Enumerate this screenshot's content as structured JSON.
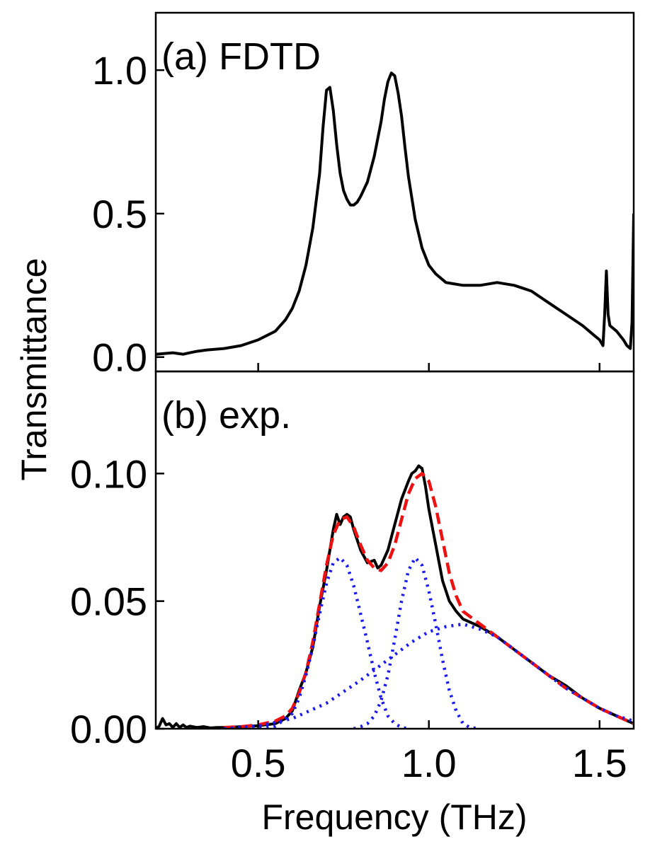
{
  "figure": {
    "xlabel": "Frequency (THz)",
    "ylabel": "Transmittance"
  },
  "chart_data": [
    {
      "type": "line",
      "panel_label": "(a) FDTD",
      "xlim": [
        0.2,
        1.6
      ],
      "ylim": [
        -0.05,
        1.2
      ],
      "yticks": [
        0.0,
        0.5,
        1.0
      ],
      "ytick_labels": [
        "0.0",
        "0.5",
        "1.0"
      ],
      "xticks": [
        0.5,
        1.0,
        1.5
      ],
      "xtick_labels_visible": false,
      "grid": false,
      "series": [
        {
          "color": "#000000",
          "style": "solid",
          "x": [
            0.2,
            0.25,
            0.28,
            0.3,
            0.32,
            0.35,
            0.4,
            0.45,
            0.5,
            0.55,
            0.58,
            0.6,
            0.62,
            0.64,
            0.66,
            0.68,
            0.69,
            0.7,
            0.71,
            0.72,
            0.73,
            0.74,
            0.75,
            0.76,
            0.77,
            0.78,
            0.79,
            0.8,
            0.82,
            0.84,
            0.86,
            0.87,
            0.88,
            0.89,
            0.9,
            0.91,
            0.92,
            0.93,
            0.94,
            0.96,
            0.98,
            1.0,
            1.02,
            1.05,
            1.1,
            1.15,
            1.2,
            1.25,
            1.3,
            1.35,
            1.4,
            1.45,
            1.48,
            1.5,
            1.51,
            1.515,
            1.52,
            1.525,
            1.53,
            1.55,
            1.57,
            1.58,
            1.59,
            1.595,
            1.6
          ],
          "y": [
            0.01,
            0.015,
            0.01,
            0.015,
            0.02,
            0.025,
            0.03,
            0.04,
            0.06,
            0.09,
            0.13,
            0.17,
            0.23,
            0.32,
            0.45,
            0.64,
            0.8,
            0.93,
            0.94,
            0.86,
            0.74,
            0.64,
            0.58,
            0.55,
            0.53,
            0.53,
            0.54,
            0.56,
            0.61,
            0.7,
            0.82,
            0.9,
            0.96,
            0.99,
            0.98,
            0.92,
            0.84,
            0.73,
            0.63,
            0.48,
            0.38,
            0.32,
            0.29,
            0.26,
            0.25,
            0.25,
            0.26,
            0.25,
            0.23,
            0.19,
            0.15,
            0.11,
            0.08,
            0.06,
            0.04,
            0.15,
            0.3,
            0.15,
            0.11,
            0.09,
            0.06,
            0.04,
            0.03,
            0.12,
            0.5
          ]
        }
      ]
    },
    {
      "type": "line",
      "panel_label": "(b) exp.",
      "xlim": [
        0.2,
        1.6
      ],
      "ylim": [
        0.0,
        0.14
      ],
      "yticks": [
        0.0,
        0.05,
        0.1
      ],
      "ytick_labels": [
        "0.00",
        "0.05",
        "0.10"
      ],
      "xticks": [
        0.5,
        1.0,
        1.5
      ],
      "xtick_labels": [
        "0.5",
        "1.0",
        "1.5"
      ],
      "grid": false,
      "series": [
        {
          "color": "#000000",
          "style": "solid",
          "x": [
            0.2,
            0.21,
            0.22,
            0.23,
            0.24,
            0.25,
            0.26,
            0.27,
            0.28,
            0.29,
            0.3,
            0.32,
            0.34,
            0.36,
            0.38,
            0.4,
            0.45,
            0.5,
            0.55,
            0.58,
            0.6,
            0.62,
            0.64,
            0.66,
            0.68,
            0.7,
            0.72,
            0.73,
            0.74,
            0.75,
            0.76,
            0.77,
            0.78,
            0.8,
            0.82,
            0.84,
            0.85,
            0.86,
            0.88,
            0.9,
            0.92,
            0.94,
            0.95,
            0.96,
            0.97,
            0.98,
            0.99,
            1.0,
            1.02,
            1.04,
            1.06,
            1.08,
            1.1,
            1.15,
            1.2,
            1.25,
            1.3,
            1.35,
            1.4,
            1.45,
            1.5,
            1.55,
            1.6
          ],
          "y": [
            0.0,
            0.001,
            0.004,
            0.0015,
            0.002,
            0.0005,
            0.002,
            0.0005,
            0.0015,
            0.0005,
            0.001,
            0.0005,
            0.0008,
            0.0003,
            0.0005,
            0.0005,
            0.0008,
            0.0012,
            0.002,
            0.004,
            0.007,
            0.015,
            0.022,
            0.032,
            0.048,
            0.062,
            0.078,
            0.084,
            0.08,
            0.083,
            0.084,
            0.083,
            0.078,
            0.07,
            0.065,
            0.066,
            0.063,
            0.064,
            0.07,
            0.08,
            0.09,
            0.097,
            0.1,
            0.101,
            0.103,
            0.102,
            0.095,
            0.086,
            0.072,
            0.058,
            0.05,
            0.046,
            0.043,
            0.04,
            0.036,
            0.031,
            0.026,
            0.021,
            0.017,
            0.012,
            0.008,
            0.005,
            0.002
          ]
        },
        {
          "color": "#ee1111",
          "style": "dashed",
          "x": [
            0.4,
            0.45,
            0.5,
            0.55,
            0.58,
            0.6,
            0.62,
            0.64,
            0.66,
            0.68,
            0.7,
            0.72,
            0.74,
            0.76,
            0.78,
            0.8,
            0.82,
            0.84,
            0.86,
            0.88,
            0.9,
            0.92,
            0.94,
            0.96,
            0.98,
            1.0,
            1.02,
            1.04,
            1.06,
            1.08,
            1.1,
            1.15,
            1.2,
            1.25,
            1.3,
            1.35,
            1.4,
            1.45,
            1.5,
            1.55,
            1.6
          ],
          "y": [
            0.0005,
            0.0008,
            0.0015,
            0.003,
            0.005,
            0.008,
            0.014,
            0.022,
            0.034,
            0.049,
            0.064,
            0.076,
            0.082,
            0.083,
            0.079,
            0.072,
            0.066,
            0.063,
            0.062,
            0.065,
            0.072,
            0.082,
            0.092,
            0.098,
            0.1,
            0.097,
            0.087,
            0.074,
            0.061,
            0.052,
            0.046,
            0.041,
            0.036,
            0.031,
            0.026,
            0.021,
            0.016,
            0.012,
            0.008,
            0.005,
            0.002
          ]
        },
        {
          "color": "#1a1aee",
          "style": "dotted",
          "x": [
            0.4,
            0.5,
            0.55,
            0.6,
            0.62,
            0.64,
            0.66,
            0.68,
            0.7,
            0.72,
            0.74,
            0.76,
            0.78,
            0.8,
            0.82,
            0.84,
            0.86,
            0.88,
            0.9,
            0.92,
            0.94
          ],
          "y": [
            0.0,
            0.0002,
            0.001,
            0.006,
            0.012,
            0.021,
            0.032,
            0.045,
            0.057,
            0.065,
            0.067,
            0.064,
            0.056,
            0.045,
            0.034,
            0.022,
            0.012,
            0.005,
            0.002,
            0.0005,
            0.0
          ]
        },
        {
          "color": "#1a1aee",
          "style": "dotted",
          "x": [
            0.78,
            0.8,
            0.82,
            0.84,
            0.86,
            0.88,
            0.9,
            0.92,
            0.94,
            0.96,
            0.98,
            1.0,
            1.02,
            1.04,
            1.06,
            1.08,
            1.1,
            1.12,
            1.15
          ],
          "y": [
            0.0,
            0.0008,
            0.002,
            0.005,
            0.011,
            0.021,
            0.035,
            0.05,
            0.062,
            0.067,
            0.064,
            0.054,
            0.041,
            0.027,
            0.015,
            0.007,
            0.002,
            0.0005,
            0.0
          ]
        },
        {
          "color": "#1a1aee",
          "style": "dotted",
          "x": [
            0.4,
            0.5,
            0.6,
            0.7,
            0.8,
            0.86,
            0.9,
            0.95,
            1.0,
            1.05,
            1.1,
            1.15,
            1.2,
            1.25,
            1.3,
            1.35,
            1.4,
            1.45,
            1.5,
            1.55,
            1.6
          ],
          "y": [
            0.0,
            0.001,
            0.004,
            0.01,
            0.019,
            0.025,
            0.029,
            0.034,
            0.038,
            0.04,
            0.041,
            0.039,
            0.036,
            0.031,
            0.026,
            0.021,
            0.016,
            0.012,
            0.008,
            0.005,
            0.003
          ]
        }
      ]
    }
  ]
}
